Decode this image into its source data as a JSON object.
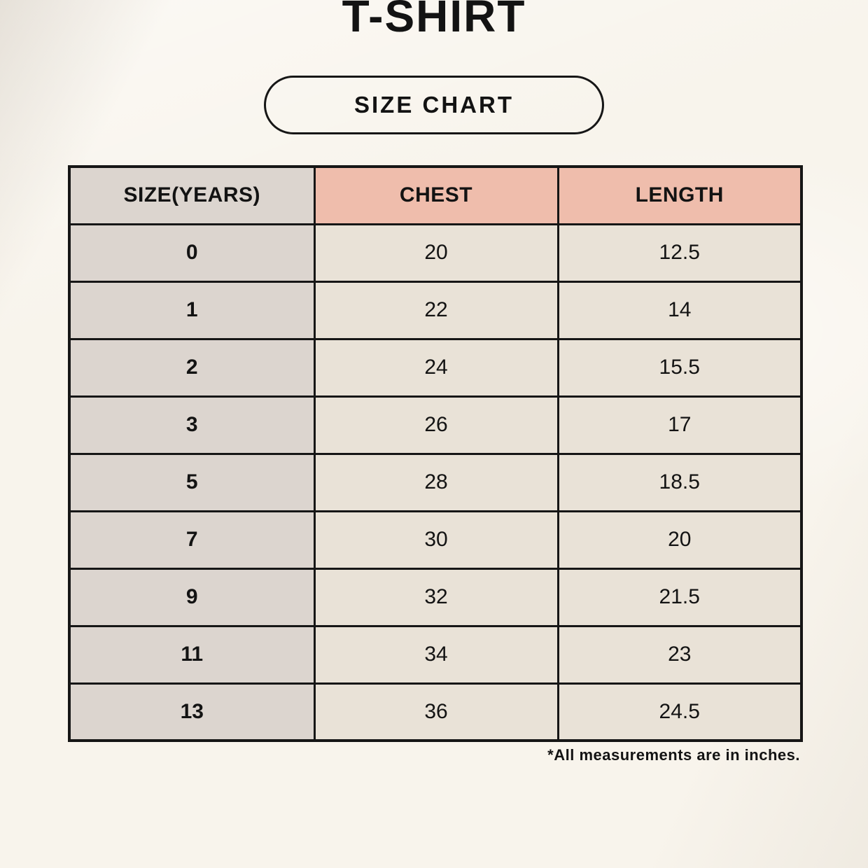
{
  "page": {
    "title": "T-SHIRT",
    "badge_label": "SIZE CHART",
    "footnote": "*All measurements are in inches."
  },
  "table": {
    "headers": [
      "SIZE(YEARS)",
      "CHEST",
      "LENGTH"
    ],
    "rows": [
      {
        "size": "0",
        "chest": "20",
        "length": "12.5"
      },
      {
        "size": "1",
        "chest": "22",
        "length": "14"
      },
      {
        "size": "2",
        "chest": "24",
        "length": "15.5"
      },
      {
        "size": "3",
        "chest": "26",
        "length": "17"
      },
      {
        "size": "5",
        "chest": "28",
        "length": "18.5"
      },
      {
        "size": "7",
        "chest": "30",
        "length": "20"
      },
      {
        "size": "9",
        "chest": "32",
        "length": "21.5"
      },
      {
        "size": "11",
        "chest": "34",
        "length": "23"
      },
      {
        "size": "13",
        "chest": "36",
        "length": "24.5"
      }
    ]
  },
  "colors": {
    "background": "#f8f4ec",
    "header_size_bg": "#dcd5cf",
    "header_measure_bg": "#efbdac",
    "size_col_bg": "#dcd5cf",
    "data_cell_bg": "#e9e2d7",
    "border": "#161616",
    "text": "#131313"
  },
  "chart_data": {
    "type": "table",
    "title": "T-SHIRT",
    "subtitle": "SIZE CHART",
    "columns": [
      "SIZE(YEARS)",
      "CHEST",
      "LENGTH"
    ],
    "rows": [
      [
        "0",
        20,
        12.5
      ],
      [
        "1",
        22,
        14
      ],
      [
        "2",
        24,
        15.5
      ],
      [
        "3",
        26,
        17
      ],
      [
        "5",
        28,
        18.5
      ],
      [
        "7",
        30,
        20
      ],
      [
        "9",
        32,
        21.5
      ],
      [
        "11",
        34,
        23
      ],
      [
        "13",
        36,
        24.5
      ]
    ],
    "footnote": "*All measurements are in inches.",
    "units": "inches"
  }
}
